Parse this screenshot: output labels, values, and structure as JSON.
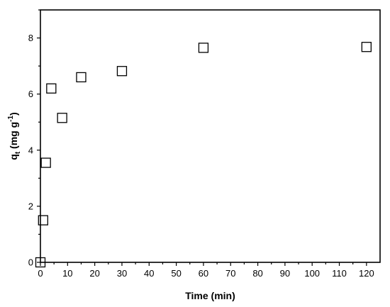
{
  "chart_data": {
    "type": "scatter",
    "title": "",
    "xlabel": "Time (min)",
    "ylabel": {
      "main": "q",
      "sub": "t",
      "units_pre": " (mg g",
      "units_sup": "-1",
      "units_post": ")"
    },
    "xlim": [
      0,
      125
    ],
    "ylim": [
      0,
      9
    ],
    "xticks": [
      0,
      10,
      20,
      30,
      40,
      50,
      60,
      70,
      80,
      90,
      100,
      110,
      120
    ],
    "yticks": [
      0,
      2,
      4,
      6,
      8
    ],
    "grid": false,
    "legend": "none",
    "marker": "open-square",
    "colors": {
      "axis": "#000000",
      "marker": "#000000"
    },
    "series": [
      {
        "x": [
          0,
          1,
          2,
          4,
          8,
          15,
          30,
          60,
          120
        ],
        "y": [
          0,
          1.5,
          3.55,
          6.2,
          5.15,
          6.6,
          6.82,
          7.65,
          7.68
        ]
      }
    ]
  }
}
